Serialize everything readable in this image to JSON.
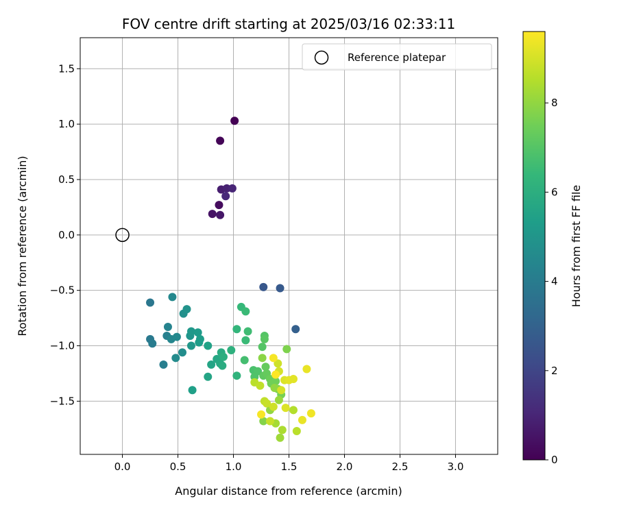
{
  "chart_data": {
    "type": "scatter",
    "title": "FOV centre drift starting at 2025/03/16 02:33:11",
    "xlabel": "Angular distance from reference (arcmin)",
    "ylabel": "Rotation from reference (arcmin)",
    "xlim": [
      -0.38,
      3.38
    ],
    "ylim": [
      -1.98,
      1.78
    ],
    "xticks": [
      "0.0",
      "0.5",
      "1.0",
      "1.5",
      "2.0",
      "2.5",
      "3.0"
    ],
    "xtick_values": [
      0.0,
      0.5,
      1.0,
      1.5,
      2.0,
      2.5,
      3.0
    ],
    "yticks": [
      "1.5",
      "1.0",
      "0.5",
      "0.0",
      "−0.5",
      "−1.0",
      "−1.5"
    ],
    "ytick_values": [
      1.5,
      1.0,
      0.5,
      0.0,
      -0.5,
      -1.0,
      -1.5
    ],
    "grid": true,
    "legend": {
      "placement": "top-right",
      "entries": [
        "Reference platepar"
      ]
    },
    "reference_point": {
      "x": 0.0,
      "y": 0.0,
      "label": "Reference platepar"
    },
    "colorbar": {
      "label": "Hours from first FF file",
      "min": 0,
      "max": 9.6,
      "ticks": [
        "0",
        "2",
        "4",
        "6",
        "8"
      ],
      "tick_values": [
        0,
        2,
        4,
        6,
        8
      ],
      "colormap": "viridis",
      "stops": [
        "#440154",
        "#482878",
        "#3e4a89",
        "#31688e",
        "#26828e",
        "#1f9e89",
        "#35b779",
        "#6ece58",
        "#b5de2b",
        "#fde725"
      ]
    },
    "series": [
      {
        "points": [
          [
            1.01,
            1.03,
            0.0
          ],
          [
            0.88,
            0.85,
            0.1
          ],
          [
            0.87,
            0.27,
            0.3
          ],
          [
            0.81,
            0.19,
            0.5
          ],
          [
            0.88,
            0.18,
            0.6
          ],
          [
            0.89,
            0.41,
            0.8
          ],
          [
            0.94,
            0.42,
            0.9
          ],
          [
            0.99,
            0.42,
            1.0
          ],
          [
            0.93,
            0.35,
            1.1
          ],
          [
            1.27,
            -0.47,
            2.6
          ],
          [
            1.42,
            -0.48,
            2.7
          ],
          [
            1.56,
            -0.85,
            2.9
          ],
          [
            0.25,
            -0.61,
            3.8
          ],
          [
            0.25,
            -0.94,
            3.9
          ],
          [
            0.27,
            -0.98,
            4.0
          ],
          [
            0.37,
            -1.17,
            4.1
          ],
          [
            0.4,
            -0.91,
            4.2
          ],
          [
            0.41,
            -0.83,
            4.3
          ],
          [
            0.44,
            -0.94,
            4.4
          ],
          [
            0.45,
            -0.56,
            4.5
          ],
          [
            0.49,
            -0.92,
            4.5
          ],
          [
            0.48,
            -1.11,
            4.6
          ],
          [
            0.54,
            -1.06,
            4.7
          ],
          [
            0.55,
            -0.71,
            4.8
          ],
          [
            0.58,
            -0.67,
            4.9
          ],
          [
            0.61,
            -0.91,
            5.0
          ],
          [
            0.62,
            -0.87,
            5.1
          ],
          [
            0.62,
            -1.0,
            5.1
          ],
          [
            0.68,
            -0.88,
            5.2
          ],
          [
            0.7,
            -0.94,
            5.3
          ],
          [
            0.69,
            -0.97,
            5.3
          ],
          [
            0.63,
            -1.4,
            5.4
          ],
          [
            0.77,
            -1.0,
            5.5
          ],
          [
            0.77,
            -1.28,
            5.6
          ],
          [
            0.8,
            -1.17,
            5.6
          ],
          [
            0.85,
            -1.12,
            5.7
          ],
          [
            0.88,
            -1.16,
            5.8
          ],
          [
            0.89,
            -1.06,
            5.9
          ],
          [
            0.9,
            -1.18,
            5.9
          ],
          [
            0.91,
            -1.1,
            6.0
          ],
          [
            0.98,
            -1.04,
            6.1
          ],
          [
            1.03,
            -1.27,
            6.2
          ],
          [
            1.03,
            -0.85,
            6.3
          ],
          [
            1.07,
            -0.65,
            6.4
          ],
          [
            1.11,
            -0.69,
            6.5
          ],
          [
            1.11,
            -0.95,
            6.5
          ],
          [
            1.13,
            -0.87,
            6.6
          ],
          [
            1.1,
            -1.13,
            6.7
          ],
          [
            1.18,
            -1.22,
            6.8
          ],
          [
            1.19,
            -1.28,
            6.9
          ],
          [
            1.22,
            -1.23,
            6.9
          ],
          [
            1.26,
            -1.01,
            7.0
          ],
          [
            1.28,
            -0.91,
            7.0
          ],
          [
            1.28,
            -0.94,
            7.1
          ],
          [
            1.27,
            -1.27,
            7.2
          ],
          [
            1.29,
            -1.19,
            7.3
          ],
          [
            1.3,
            -1.25,
            7.3
          ],
          [
            1.33,
            -1.3,
            7.4
          ],
          [
            1.34,
            -1.34,
            7.5
          ],
          [
            1.38,
            -1.32,
            7.5
          ],
          [
            1.4,
            -1.39,
            7.6
          ],
          [
            1.43,
            -1.44,
            7.6
          ],
          [
            1.48,
            -1.03,
            7.7
          ],
          [
            1.27,
            -1.68,
            7.8
          ],
          [
            1.26,
            -1.11,
            7.9
          ],
          [
            1.33,
            -1.58,
            8.0
          ],
          [
            1.37,
            -1.38,
            8.0
          ],
          [
            1.41,
            -1.49,
            8.1
          ],
          [
            1.42,
            -1.83,
            8.2
          ],
          [
            1.38,
            -1.7,
            8.3
          ],
          [
            1.44,
            -1.76,
            8.4
          ],
          [
            1.54,
            -1.58,
            8.5
          ],
          [
            1.57,
            -1.77,
            8.6
          ],
          [
            1.19,
            -1.33,
            8.6
          ],
          [
            1.24,
            -1.36,
            8.7
          ],
          [
            1.28,
            -1.5,
            8.7
          ],
          [
            1.3,
            -1.52,
            8.8
          ],
          [
            1.33,
            -1.68,
            8.8
          ],
          [
            1.36,
            -1.55,
            8.9
          ],
          [
            1.4,
            -1.16,
            8.9
          ],
          [
            1.41,
            -1.23,
            9.0
          ],
          [
            1.43,
            -1.4,
            9.0
          ],
          [
            1.46,
            -1.31,
            9.1
          ],
          [
            1.47,
            -1.56,
            9.1
          ],
          [
            1.5,
            -1.31,
            9.2
          ],
          [
            1.54,
            -1.3,
            9.2
          ],
          [
            1.62,
            -1.67,
            9.3
          ],
          [
            1.66,
            -1.21,
            9.3
          ],
          [
            1.7,
            -1.61,
            9.4
          ],
          [
            1.25,
            -1.62,
            9.5
          ],
          [
            1.36,
            -1.11,
            9.5
          ],
          [
            1.38,
            -1.26,
            9.6
          ]
        ]
      }
    ]
  }
}
